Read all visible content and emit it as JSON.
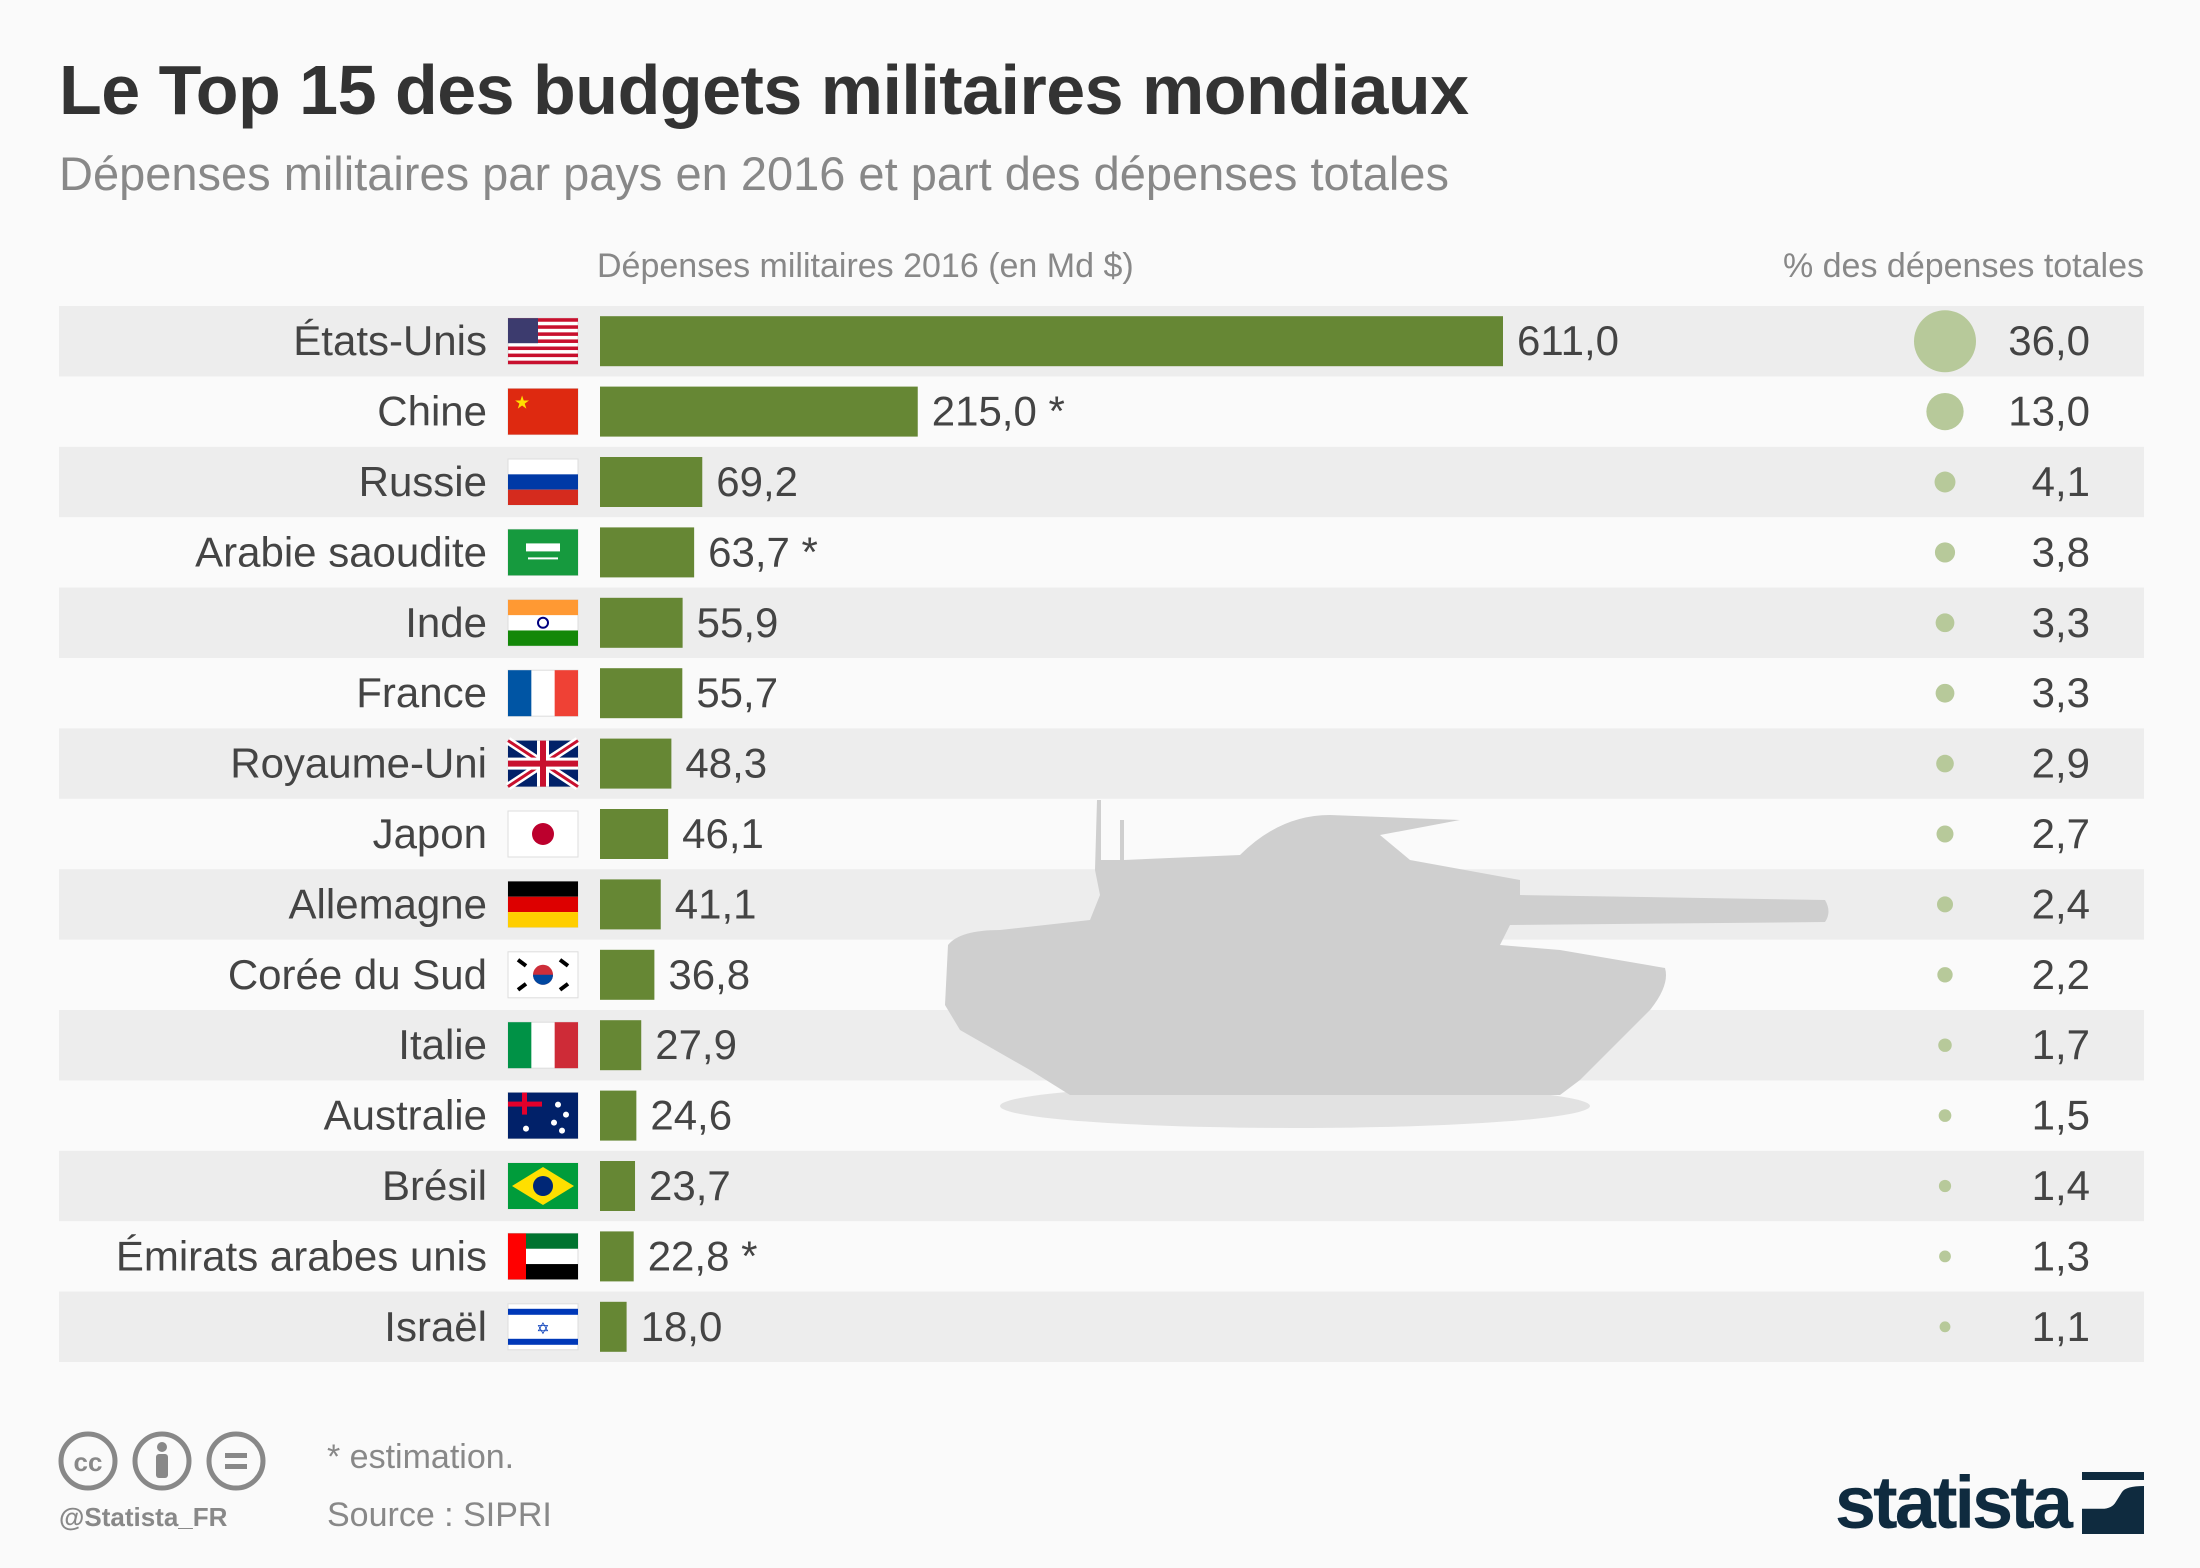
{
  "title": "Le Top 15 des budgets militaires mondiaux",
  "subtitle": "Dépenses militaires par pays en 2016 et part des dépenses totales",
  "chart_data": {
    "type": "bar",
    "orientation": "horizontal",
    "bar_header": "Dépenses militaires 2016 (en Md $)",
    "share_header": "% des dépenses totales",
    "categories": [
      "États-Unis",
      "Chine",
      "Russie",
      "Arabie saoudite",
      "Inde",
      "France",
      "Royaume-Uni",
      "Japon",
      "Allemagne",
      "Corée du Sud",
      "Italie",
      "Australie",
      "Brésil",
      "Émirats arabes unis",
      "Israël"
    ],
    "flags": [
      "us",
      "cn",
      "ru",
      "sa",
      "in",
      "fr",
      "gb",
      "jp",
      "de",
      "kr",
      "it",
      "au",
      "br",
      "ae",
      "il"
    ],
    "values": [
      611.0,
      215.0,
      69.2,
      63.7,
      55.9,
      55.7,
      48.3,
      46.1,
      41.1,
      36.8,
      27.9,
      24.6,
      23.7,
      22.8,
      18.0
    ],
    "value_labels": [
      "611,0",
      "215,0 *",
      "69,2",
      "63,7 *",
      "55,9",
      "55,7",
      "48,3",
      "46,1",
      "41,1",
      "36,8",
      "27,9",
      "24,6",
      "23,7",
      "22,8 *",
      "18,0"
    ],
    "share_values": [
      36.0,
      13.0,
      4.1,
      3.8,
      3.3,
      3.3,
      2.9,
      2.7,
      2.4,
      2.2,
      1.7,
      1.5,
      1.4,
      1.3,
      1.1
    ],
    "share_labels": [
      "36,0",
      "13,0",
      "4,1",
      "3,8",
      "3,3",
      "3,3",
      "2,9",
      "2,7",
      "2,4",
      "2,2",
      "1,7",
      "1,5",
      "1,4",
      "1,3",
      "1,1"
    ],
    "estimated": [
      "Chine",
      "Arabie saoudite",
      "Émirats arabes unis"
    ],
    "bar_color": "#668734",
    "bubble_color": "#b7c99a",
    "row_stripe_color": "#ededed"
  },
  "footer": {
    "note": "* estimation.",
    "source": "Source : SIPRI",
    "handle": "@Statista_FR",
    "logo": "statista",
    "license_icons": [
      "cc-icon",
      "by-icon",
      "nd-icon"
    ]
  }
}
